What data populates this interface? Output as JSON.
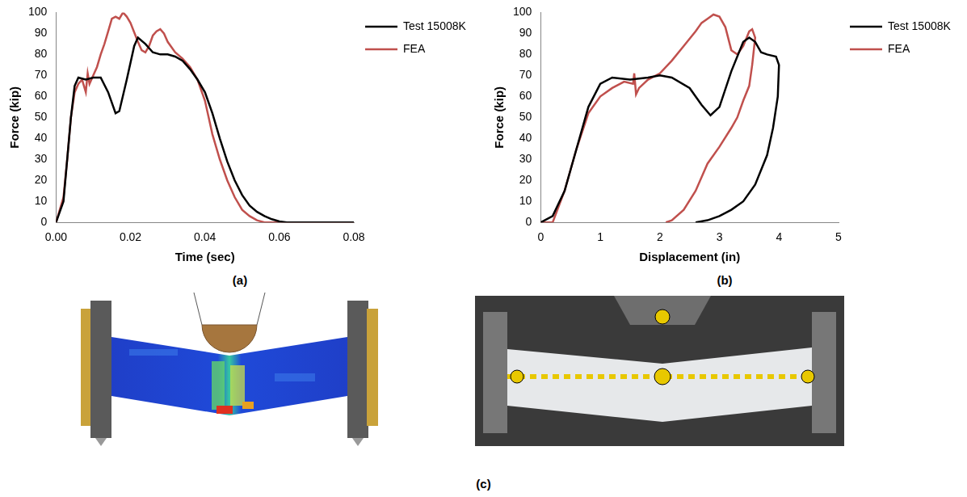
{
  "chart_data": [
    {
      "type": "line",
      "panel_label": "(a)",
      "x_label": "Time (sec)",
      "y_label": "Force (kip)",
      "xlim": [
        0,
        0.08
      ],
      "xticks": [
        {
          "value": 0,
          "label": "0.00"
        },
        0.02,
        0.04,
        0.06,
        0.08
      ],
      "ylim": [
        0,
        100
      ],
      "yticks": [
        0,
        10,
        20,
        30,
        40,
        50,
        60,
        70,
        80,
        90,
        100
      ],
      "grid": false,
      "legend": "right",
      "series": [
        {
          "name": "Test 15008K",
          "color": "#000000",
          "x": [
            0,
            0.002,
            0.003,
            0.004,
            0.005,
            0.006,
            0.008,
            0.01,
            0.012,
            0.014,
            0.016,
            0.017,
            0.019,
            0.021,
            0.022,
            0.024,
            0.026,
            0.028,
            0.03,
            0.032,
            0.034,
            0.036,
            0.038,
            0.04,
            0.042,
            0.044,
            0.046,
            0.048,
            0.05,
            0.052,
            0.054,
            0.056,
            0.058,
            0.06,
            0.062,
            0.08
          ],
          "values": [
            0,
            10,
            30,
            50,
            65,
            69,
            68,
            69,
            69,
            62,
            52,
            53,
            68,
            84,
            88,
            85,
            81,
            80,
            80,
            79,
            77,
            73,
            68,
            62,
            52,
            40,
            29,
            20,
            13,
            8,
            5,
            3,
            1.5,
            0.5,
            0,
            0
          ]
        },
        {
          "name": "FEA",
          "color": "#c0504d",
          "x": [
            0,
            0.002,
            0.003,
            0.004,
            0.005,
            0.006,
            0.007,
            0.0075,
            0.008,
            0.0085,
            0.009,
            0.01,
            0.011,
            0.012,
            0.013,
            0.014,
            0.015,
            0.016,
            0.017,
            0.018,
            0.019,
            0.02,
            0.022,
            0.023,
            0.024,
            0.025,
            0.026,
            0.027,
            0.028,
            0.029,
            0.03,
            0.032,
            0.034,
            0.036,
            0.038,
            0.04,
            0.041,
            0.042,
            0.044,
            0.046,
            0.048,
            0.05,
            0.052,
            0.054,
            0.056,
            0.08
          ],
          "values": [
            0,
            12,
            30,
            50,
            62,
            66,
            68,
            65,
            62,
            71,
            66,
            70,
            74,
            80,
            85,
            91,
            97,
            98,
            97,
            100,
            98,
            95,
            86,
            82,
            81,
            84,
            89,
            91,
            92,
            90,
            86,
            81,
            78,
            74,
            68,
            58,
            50,
            42,
            30,
            20,
            12,
            6,
            3,
            1,
            0,
            0
          ]
        }
      ]
    },
    {
      "type": "line",
      "panel_label": "(b)",
      "x_label": "Displacement (in)",
      "y_label": "Force (kip)",
      "xlim": [
        0,
        5
      ],
      "xticks": [
        0,
        1,
        2,
        3,
        4,
        5
      ],
      "ylim": [
        0,
        100
      ],
      "yticks": [
        0,
        10,
        20,
        30,
        40,
        50,
        60,
        70,
        80,
        90,
        100
      ],
      "grid": false,
      "legend": "right",
      "series": [
        {
          "name": "Test 15008K",
          "color": "#000000",
          "x": [
            0,
            0.2,
            0.4,
            0.6,
            0.8,
            1.0,
            1.2,
            1.5,
            1.8,
            2.0,
            2.2,
            2.5,
            2.7,
            2.85,
            3.0,
            3.2,
            3.4,
            3.5,
            3.6,
            3.7,
            3.8,
            3.95,
            4.0,
            3.98,
            3.9,
            3.8,
            3.6,
            3.4,
            3.2,
            3.0,
            2.8,
            2.6
          ],
          "values": [
            0,
            3,
            15,
            35,
            55,
            66,
            69,
            68,
            69,
            70,
            69,
            64,
            56,
            51,
            55,
            72,
            86,
            88,
            86,
            81,
            80,
            79,
            75,
            60,
            45,
            32,
            18,
            10,
            6,
            3,
            1,
            0
          ]
        },
        {
          "name": "FEA",
          "color": "#c0504d",
          "x": [
            0,
            0.2,
            0.4,
            0.6,
            0.8,
            1.0,
            1.2,
            1.4,
            1.55,
            1.57,
            1.6,
            1.65,
            1.8,
            2.0,
            2.2,
            2.4,
            2.6,
            2.7,
            2.8,
            2.9,
            3.0,
            3.1,
            3.2,
            3.3,
            3.4,
            3.5,
            3.55,
            3.6,
            3.55,
            3.5,
            3.4,
            3.3,
            3.2,
            3.0,
            2.8,
            2.6,
            2.4,
            2.2,
            2.1
          ],
          "values": [
            0,
            0,
            15,
            35,
            52,
            60,
            64,
            67,
            66,
            71,
            61,
            64,
            68,
            71,
            77,
            84,
            91,
            95,
            97,
            99,
            98,
            93,
            82,
            80,
            84,
            91,
            92,
            88,
            75,
            65,
            58,
            50,
            45,
            36,
            28,
            15,
            6,
            1,
            0
          ]
        }
      ]
    }
  ],
  "panel_c": {
    "label": "(c)"
  }
}
